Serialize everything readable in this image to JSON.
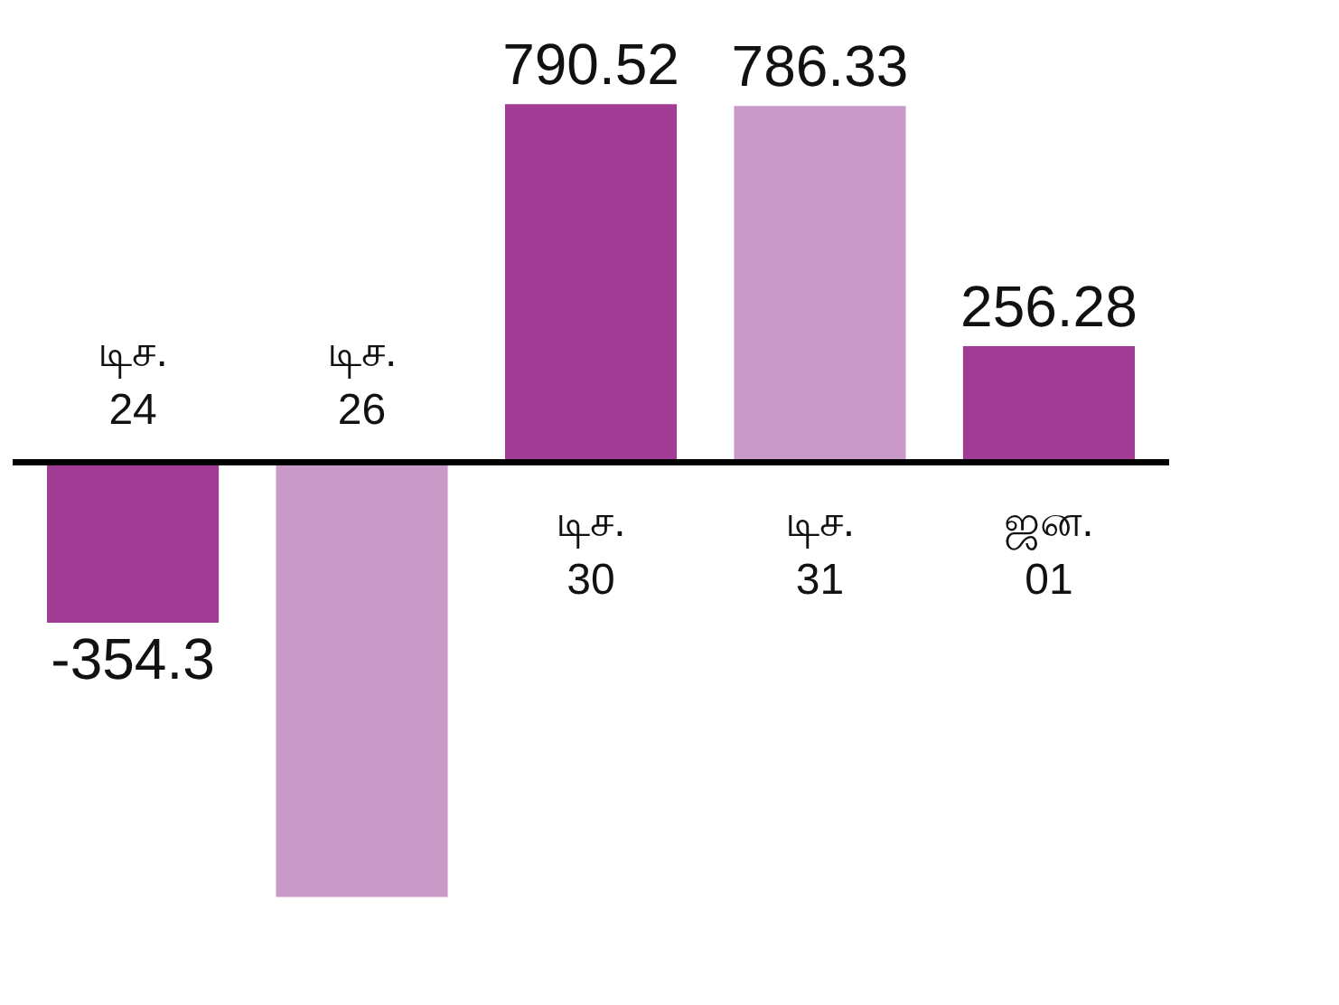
{
  "chart_data": {
    "type": "bar",
    "categories": [
      "டிச. 24",
      "டிச. 26",
      "டிச. 30",
      "டிச. 31",
      "ஜன. 01"
    ],
    "values": [
      -354.3,
      -960,
      790.52,
      786.33,
      256.28
    ],
    "colors": [
      "#a23b94",
      "#c99ac7",
      "#a23b94",
      "#c99ac7",
      "#a23b94"
    ],
    "value_labels": [
      "-354.3",
      null,
      "790.52",
      "786.33",
      "256.28"
    ]
  }
}
